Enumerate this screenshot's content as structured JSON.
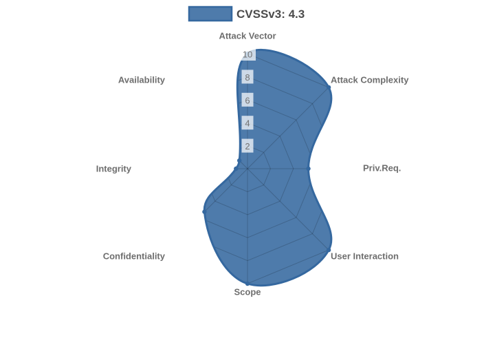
{
  "chart_data": {
    "type": "radar",
    "categories": [
      "Attack Vector",
      "Attack Complexity",
      "Priv.Req.",
      "User Interaction",
      "Scope",
      "Confidentiality",
      "Integrity",
      "Availability"
    ],
    "series": [
      {
        "name": "CVSSv3: 4.3",
        "values": [
          10,
          10,
          5.3,
          10,
          10,
          5.3,
          1,
          1
        ]
      }
    ],
    "scale": {
      "min": 0,
      "max": 10,
      "ticks": [
        2,
        4,
        6,
        8,
        10
      ]
    },
    "legend_position": "top",
    "grid": "polygonal web, visible only inside filled series area",
    "colors": {
      "series_fill": "#4E7BAB",
      "series_border": "#35689F",
      "point_fill": "#35689F",
      "grid_line": "rgba(0,0,0,0.18)",
      "tick_backdrop": "rgba(255,255,255,0.72)",
      "tick_text": "#737373",
      "axis_label_text": "#6E6E6E",
      "legend_text": "#4B4B4B"
    }
  }
}
